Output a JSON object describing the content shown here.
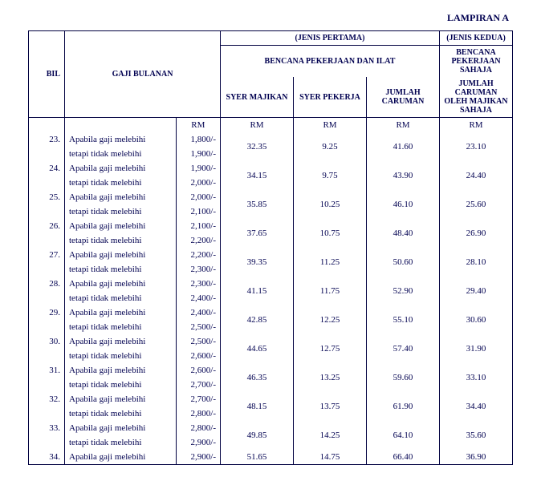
{
  "attachment_label": "LAMPIRAN A",
  "headers": {
    "bil": "BIL",
    "gaji_bulanan": "GAJI BULANAN",
    "jenis_pertama": "(JENIS PERTAMA)",
    "jenis_kedua": "(JENIS KEDUA)",
    "bencana_pekerjaan_ilat": "BENCANA PEKERJAAN DAN ILAT",
    "bencana_pekerjaan_sahaja": "BENCANA PEKERJAAN SAHAJA",
    "syer_majikan": "SYER MAJIKAN",
    "syer_pekerja": "SYER PEKERJA",
    "jumlah_caruman": "JUMLAH CARUMAN",
    "jumlah_caruman_oleh_majikan_sahaja": "JUMLAH CARUMAN OLEH MAJIKAN SAHAJA",
    "rm": "RM"
  },
  "gaji_text": {
    "line1": "Apabila gaji melebihi",
    "line2": "tetapi tidak melebihi"
  },
  "rows": [
    {
      "bil": "23.",
      "from": "1,800/-",
      "to": "1,900/-",
      "syer_majikan": "32.35",
      "syer_pekerja": "9.25",
      "jumlah_caruman": "41.60",
      "jumlah_majikan_sahaja": "23.10"
    },
    {
      "bil": "24.",
      "from": "1,900/-",
      "to": "2,000/-",
      "syer_majikan": "34.15",
      "syer_pekerja": "9.75",
      "jumlah_caruman": "43.90",
      "jumlah_majikan_sahaja": "24.40"
    },
    {
      "bil": "25.",
      "from": "2,000/-",
      "to": "2,100/-",
      "syer_majikan": "35.85",
      "syer_pekerja": "10.25",
      "jumlah_caruman": "46.10",
      "jumlah_majikan_sahaja": "25.60"
    },
    {
      "bil": "26.",
      "from": "2,100/-",
      "to": "2,200/-",
      "syer_majikan": "37.65",
      "syer_pekerja": "10.75",
      "jumlah_caruman": "48.40",
      "jumlah_majikan_sahaja": "26.90"
    },
    {
      "bil": "27.",
      "from": "2,200/-",
      "to": "2,300/-",
      "syer_majikan": "39.35",
      "syer_pekerja": "11.25",
      "jumlah_caruman": "50.60",
      "jumlah_majikan_sahaja": "28.10"
    },
    {
      "bil": "28.",
      "from": "2,300/-",
      "to": "2,400/-",
      "syer_majikan": "41.15",
      "syer_pekerja": "11.75",
      "jumlah_caruman": "52.90",
      "jumlah_majikan_sahaja": "29.40"
    },
    {
      "bil": "29.",
      "from": "2,400/-",
      "to": "2,500/-",
      "syer_majikan": "42.85",
      "syer_pekerja": "12.25",
      "jumlah_caruman": "55.10",
      "jumlah_majikan_sahaja": "30.60"
    },
    {
      "bil": "30.",
      "from": "2,500/-",
      "to": "2,600/-",
      "syer_majikan": "44.65",
      "syer_pekerja": "12.75",
      "jumlah_caruman": "57.40",
      "jumlah_majikan_sahaja": "31.90"
    },
    {
      "bil": "31.",
      "from": "2,600/-",
      "to": "2,700/-",
      "syer_majikan": "46.35",
      "syer_pekerja": "13.25",
      "jumlah_caruman": "59.60",
      "jumlah_majikan_sahaja": "33.10"
    },
    {
      "bil": "32.",
      "from": "2,700/-",
      "to": "2,800/-",
      "syer_majikan": "48.15",
      "syer_pekerja": "13.75",
      "jumlah_caruman": "61.90",
      "jumlah_majikan_sahaja": "34.40"
    },
    {
      "bil": "33.",
      "from": "2,800/-",
      "to": "2,900/-",
      "syer_majikan": "49.85",
      "syer_pekerja": "14.25",
      "jumlah_caruman": "64.10",
      "jumlah_majikan_sahaja": "35.60"
    },
    {
      "bil": "34.",
      "from": "2,900/-",
      "to": "",
      "syer_majikan": "51.65",
      "syer_pekerja": "14.75",
      "jumlah_caruman": "66.40",
      "jumlah_majikan_sahaja": "36.90",
      "single_line": true
    }
  ]
}
